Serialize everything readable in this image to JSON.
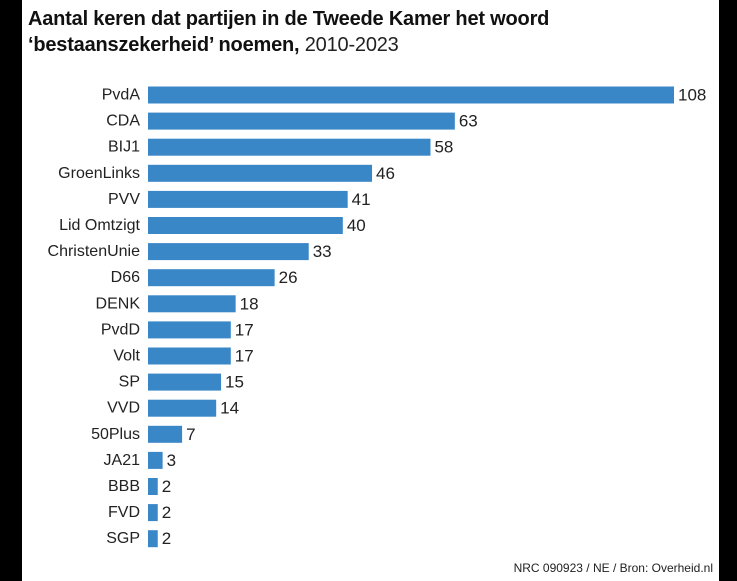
{
  "header": {
    "title_line1": "Aantal keren dat partijen in de Tweede Kamer het woord",
    "title_line2": "‘bestaanszekerheid’ noemen,",
    "title_years": "2010-2023"
  },
  "footer": {
    "source": "NRC 090923 / NE / Bron: Overheid.nl"
  },
  "colors": {
    "bar": "#3A87C8",
    "text": "#222222",
    "background": "#ffffff"
  },
  "chart_data": {
    "type": "bar",
    "orientation": "horizontal",
    "title": "Aantal keren dat partijen in de Tweede Kamer het woord ‘bestaanszekerheid’ noemen, 2010-2023",
    "categories": [
      "PvdA",
      "CDA",
      "BIJ1",
      "GroenLinks",
      "PVV",
      "Lid Omtzigt",
      "ChristenUnie",
      "D66",
      "DENK",
      "PvdD",
      "Volt",
      "SP",
      "VVD",
      "50Plus",
      "JA21",
      "BBB",
      "FVD",
      "SGP"
    ],
    "values": [
      108,
      63,
      58,
      46,
      41,
      40,
      33,
      26,
      18,
      17,
      17,
      15,
      14,
      7,
      3,
      2,
      2,
      2
    ],
    "data_labels": true,
    "xlabel": "",
    "ylabel": "",
    "xlim": [
      0,
      108
    ],
    "grid": false,
    "legend": false
  }
}
